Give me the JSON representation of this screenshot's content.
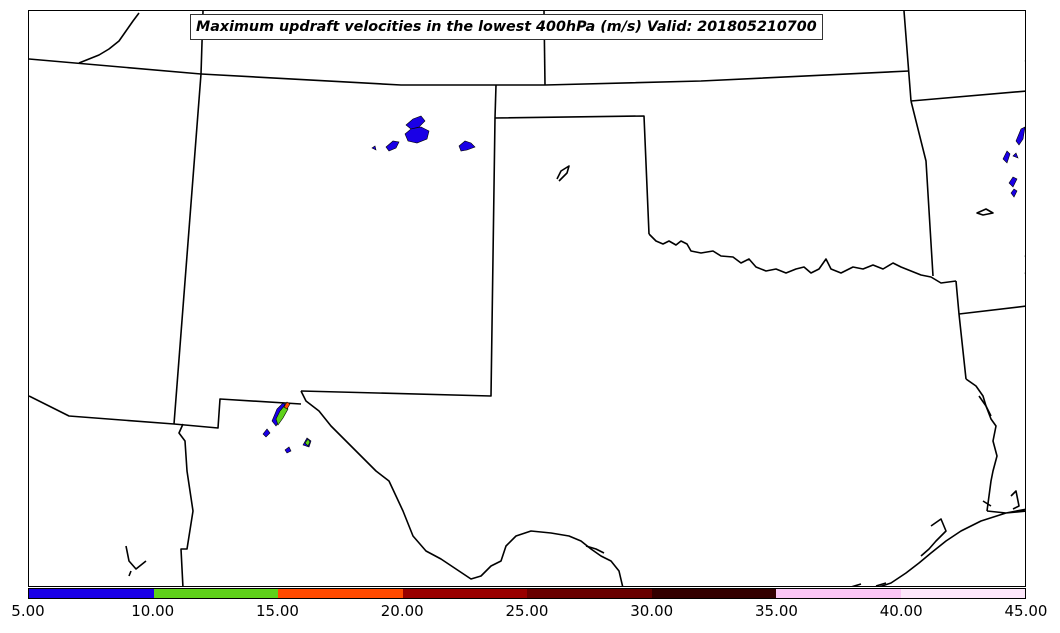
{
  "title": "Maximum updraft velocities in the lowest 400hPa (m/s) Valid: 201805210700",
  "colorbar": {
    "segments": [
      {
        "from": 5,
        "to": 10,
        "color": "#1a00e6"
      },
      {
        "from": 10,
        "to": 15,
        "color": "#5fd11a"
      },
      {
        "from": 15,
        "to": 20,
        "color": "#ff4a00"
      },
      {
        "from": 20,
        "to": 25,
        "color": "#990000"
      },
      {
        "from": 25,
        "to": 30,
        "color": "#680000"
      },
      {
        "from": 30,
        "to": 35,
        "color": "#330000"
      },
      {
        "from": 35,
        "to": 40,
        "color": "#fbc6f5"
      },
      {
        "from": 40,
        "to": 45,
        "color": "#fde7fb"
      }
    ],
    "ticks": [
      "5.00",
      "10.00",
      "15.00",
      "20.00",
      "25.00",
      "30.00",
      "35.00",
      "40.00",
      "45.00"
    ]
  },
  "colors": {
    "boundary": "#000000",
    "updraft_low": "#1a00e6",
    "updraft_mid": "#5fd11a",
    "updraft_high": "#ff4a00"
  }
}
